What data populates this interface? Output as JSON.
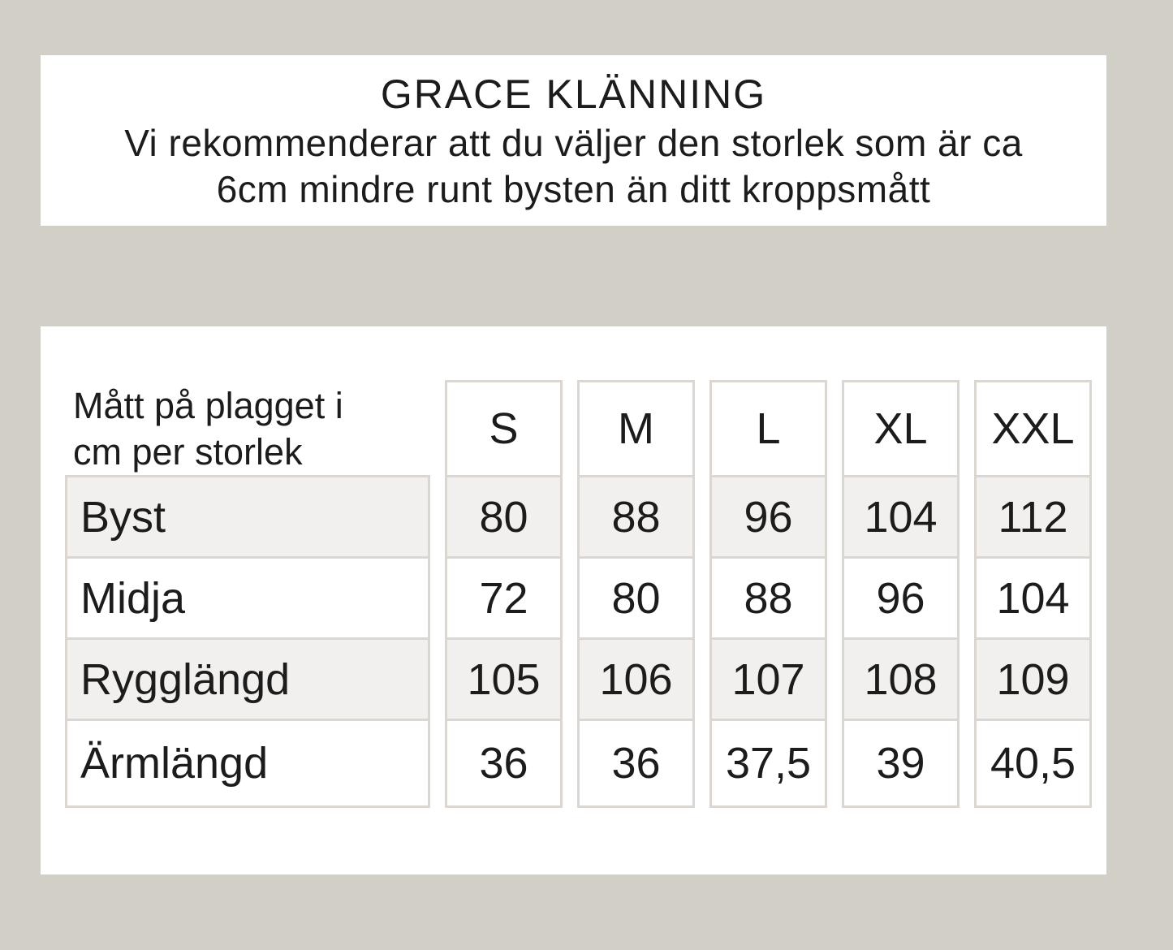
{
  "theme": {
    "page_background": "#d2cfc7",
    "panel_background": "#ffffff",
    "border_color": "#dbd7d0",
    "alt_row_background": "#f1f0ee",
    "text_color": "#1c1c1c"
  },
  "header": {
    "title": "GRACE KLÄNNING",
    "subtitle_lines": [
      "Vi rekommenderar att du väljer den storlek som är ca",
      "6cm mindre runt bysten än ditt kroppsmått"
    ]
  },
  "size_table": {
    "corner_label_lines": [
      "Mått på plagget i",
      "cm per storlek"
    ],
    "columns": [
      "S",
      "M",
      "L",
      "XL",
      "XXL"
    ],
    "rows": [
      {
        "label": "Byst",
        "values": [
          "80",
          "88",
          "96",
          "104",
          "112"
        ]
      },
      {
        "label": "Midja",
        "values": [
          "72",
          "80",
          "88",
          "96",
          "104"
        ]
      },
      {
        "label": "Rygglängd",
        "values": [
          "105",
          "106",
          "107",
          "108",
          "109"
        ]
      },
      {
        "label": "Ärmlängd",
        "values": [
          "36",
          "36",
          "37,5",
          "39",
          "40,5"
        ]
      }
    ]
  }
}
